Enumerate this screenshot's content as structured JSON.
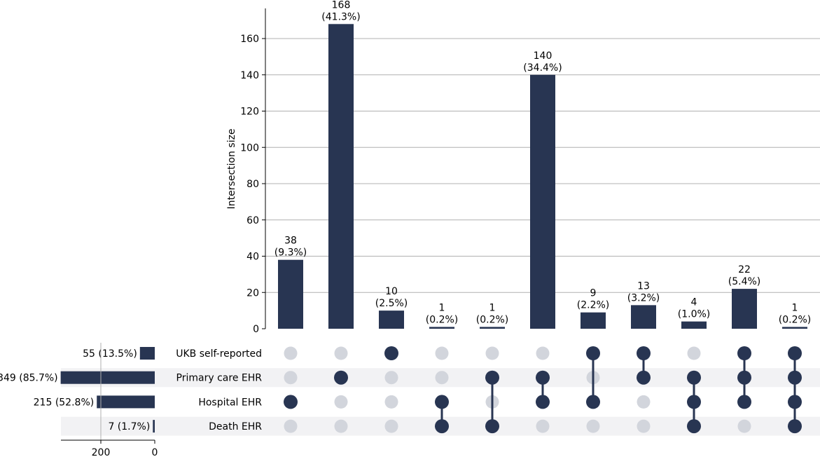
{
  "chart_data": {
    "type": "upset",
    "ylabel": "Intersection size",
    "yticks": [
      0,
      20,
      40,
      60,
      80,
      100,
      120,
      140,
      160
    ],
    "ylim": [
      0,
      175
    ],
    "sets": [
      {
        "name": "UKB self-reported",
        "size": 55,
        "size_label": "55 (13.5%)"
      },
      {
        "name": "Primary care EHR",
        "size": 349,
        "size_label": "349 (85.7%)"
      },
      {
        "name": "Hospital EHR",
        "size": 215,
        "size_label": "215 (52.8%)"
      },
      {
        "name": "Death EHR",
        "size": 7,
        "size_label": "7 (1.7%)"
      }
    ],
    "set_size_axis": {
      "ticks": [
        200,
        0
      ],
      "max": 350
    },
    "intersections": [
      {
        "value": 38,
        "pct": "(9.3%)",
        "members": [
          2
        ]
      },
      {
        "value": 168,
        "pct": "(41.3%)",
        "members": [
          1
        ]
      },
      {
        "value": 10,
        "pct": "(2.5%)",
        "members": [
          0
        ]
      },
      {
        "value": 1,
        "pct": "(0.2%)",
        "members": [
          2,
          3
        ]
      },
      {
        "value": 1,
        "pct": "(0.2%)",
        "members": [
          1,
          3
        ]
      },
      {
        "value": 140,
        "pct": "(34.4%)",
        "members": [
          1,
          2
        ]
      },
      {
        "value": 9,
        "pct": "(2.2%)",
        "members": [
          0,
          2
        ]
      },
      {
        "value": 13,
        "pct": "(3.2%)",
        "members": [
          0,
          1
        ]
      },
      {
        "value": 4,
        "pct": "(1.0%)",
        "members": [
          1,
          2,
          3
        ]
      },
      {
        "value": 22,
        "pct": "(5.4%)",
        "members": [
          0,
          1,
          2
        ]
      },
      {
        "value": 1,
        "pct": "(0.2%)",
        "members": [
          0,
          1,
          2,
          3
        ]
      }
    ],
    "colors": {
      "bar": "#283552",
      "dot_inactive": "#d2d5dc",
      "stripe": "#f2f2f4",
      "grid": "#b0b0b0"
    },
    "grid": true
  }
}
